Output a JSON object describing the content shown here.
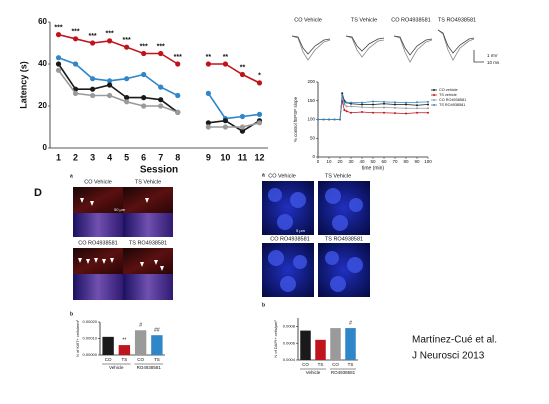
{
  "chart_data": [
    {
      "type": "line",
      "ylabel": "Latency (s)",
      "xlabel": "Session",
      "categories": [
        "1",
        "2",
        "3",
        "4",
        "5",
        "6",
        "7",
        "8",
        "9",
        "10",
        "11",
        "12"
      ],
      "ylim": [
        0,
        60
      ],
      "yticks": [
        0,
        20,
        40,
        60
      ],
      "grid": false,
      "series": [
        {
          "color": "#c0141c",
          "values": [
            54,
            52,
            50,
            51,
            48,
            45,
            45,
            40,
            40,
            40,
            35,
            31
          ],
          "annotations": [
            "***",
            "***",
            "***",
            "***",
            "***",
            "***",
            "***",
            "***",
            "**",
            "**",
            "**",
            "*"
          ]
        },
        {
          "color": "#2f86c8",
          "values": [
            43,
            40,
            33,
            32,
            33,
            35,
            29,
            25,
            26,
            14,
            15,
            16
          ]
        },
        {
          "color": "#1a1a1a",
          "values": [
            40,
            28,
            28,
            30,
            24,
            24,
            23,
            17,
            12,
            13,
            8,
            13
          ]
        },
        {
          "color": "#9a9a9a",
          "values": [
            37,
            26,
            25,
            25,
            22,
            20,
            20,
            17,
            10,
            10,
            10,
            12
          ]
        }
      ]
    },
    {
      "type": "line",
      "ylabel": "% control fEPSP slope",
      "xlabel": "time (min)",
      "x": [
        0,
        5,
        10,
        15,
        20,
        22,
        24,
        26,
        30,
        40,
        50,
        60,
        70,
        80,
        90,
        100
      ],
      "xlim": [
        0,
        100
      ],
      "xticks": [
        0,
        10,
        20,
        30,
        40,
        50,
        60,
        70,
        80,
        90,
        100
      ],
      "ylim": [
        0,
        200
      ],
      "yticks": [
        0,
        50,
        100,
        150,
        200
      ],
      "grid": false,
      "legend": "right",
      "series": [
        {
          "name": "CO vehicle",
          "color": "#1a1a1a",
          "values": [
            100,
            100,
            100,
            100,
            100,
            170,
            150,
            145,
            142,
            140,
            140,
            142,
            140,
            140,
            138,
            140
          ]
        },
        {
          "name": "TS vehicle",
          "color": "#c0141c",
          "values": [
            100,
            100,
            100,
            100,
            100,
            150,
            125,
            122,
            118,
            120,
            118,
            118,
            117,
            116,
            118,
            118
          ]
        },
        {
          "name": "CO RO4938581",
          "color": "#9a9a9a",
          "values": [
            100,
            100,
            100,
            100,
            100,
            160,
            140,
            135,
            135,
            133,
            132,
            132,
            131,
            130,
            130,
            130
          ]
        },
        {
          "name": "TS RO4938581",
          "color": "#2f86c8",
          "values": [
            100,
            100,
            100,
            100,
            100,
            165,
            145,
            145,
            145,
            145,
            148,
            147,
            146,
            145,
            146,
            147
          ]
        }
      ]
    },
    {
      "type": "bar",
      "ylabel": "N of Ki67+ cells/mm²",
      "categories": [
        "CO",
        "TS",
        "CO",
        "TS"
      ],
      "groups": [
        "Vehicle",
        "RO4938581"
      ],
      "values": [
        0.00011,
        6e-05,
        0.00015,
        0.00012
      ],
      "colors": [
        "#1a1a1a",
        "#c0141c",
        "#9a9a9a",
        "#2f86c8"
      ],
      "annotations": [
        null,
        "**",
        "#",
        "##"
      ],
      "ylim": [
        0,
        0.0002
      ],
      "grid": false,
      "yticks": [
        {
          "value": 0,
          "label": "0.00000"
        },
        {
          "value": 0.0001,
          "label": "0.00010"
        },
        {
          "value": 0.0002,
          "label": "0.00020"
        }
      ]
    },
    {
      "type": "bar",
      "ylabel": "N of DAPI+ cells/µm²",
      "categories": [
        "CO",
        "TS",
        "CO",
        "TS"
      ],
      "groups": [
        "Vehicle",
        "RO4938581"
      ],
      "values": [
        0.00075,
        0.00064,
        0.00078,
        0.00078
      ],
      "colors": [
        "#1a1a1a",
        "#c0141c",
        "#9a9a9a",
        "#2f86c8"
      ],
      "annotations": [
        null,
        null,
        null,
        "#"
      ],
      "ylim": [
        0.0004,
        0.0009
      ],
      "grid": false,
      "yticks": [
        0.0004,
        0.0006,
        0.0008
      ]
    }
  ],
  "traces": {
    "labels": [
      "CO Vehicle",
      "TS Vehicle",
      "CO RO4938581",
      "TS RO4938581"
    ],
    "scale_y": "1 mV",
    "scale_x": "10 ms"
  },
  "panel_d": {
    "letter": "D",
    "sub_a": "a",
    "sub_b": "b",
    "labels": [
      "CO Vehicle",
      "TS Vehicle",
      "CO RO4938581",
      "TS RO4938581"
    ],
    "scale": "50 µm"
  },
  "panel_e": {
    "sub_a": "a",
    "sub_b": "b",
    "labels": [
      "CO Vehicle",
      "TS Vehicle",
      "CO RO4938581",
      "TS RO4938581"
    ],
    "scale": "5 µm"
  },
  "citation": [
    "Martínez-Cué et al.",
    "J Neurosci 2013"
  ]
}
